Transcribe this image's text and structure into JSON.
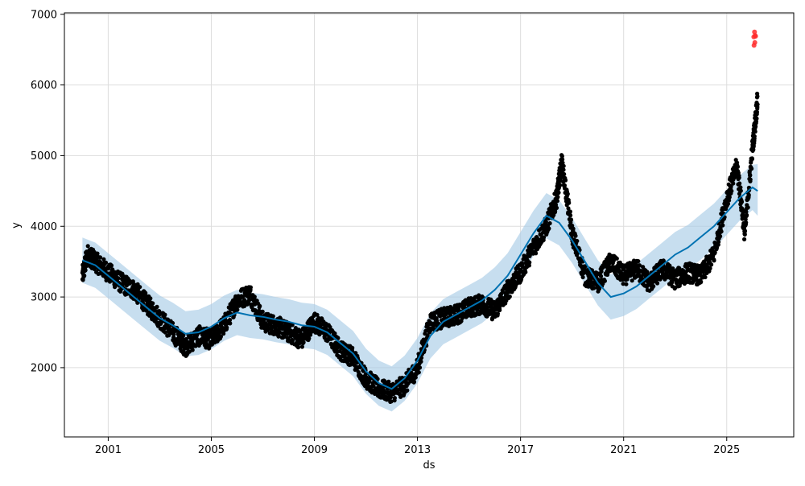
{
  "chart_data": {
    "type": "scatter",
    "title": "",
    "xlabel": "ds",
    "ylabel": "y",
    "xlim": [
      1999.3,
      2027.6
    ],
    "ylim": [
      1020,
      7020
    ],
    "x_ticks": [
      2001,
      2005,
      2009,
      2013,
      2017,
      2021,
      2025
    ],
    "x_tick_labels": [
      "2001",
      "2005",
      "2009",
      "2013",
      "2017",
      "2021",
      "2025"
    ],
    "y_ticks": [
      2000,
      3000,
      4000,
      5000,
      6000,
      7000
    ],
    "y_tick_labels": [
      "2000",
      "3000",
      "4000",
      "5000",
      "6000",
      "7000"
    ],
    "grid": true,
    "legend": "none",
    "colors": {
      "actual": "#000000",
      "forecast_line": "#0072b2",
      "interval": "#a9cde6",
      "outlier": "#ff2a2a",
      "grid": "#dddddd"
    },
    "forecast": {
      "x": [
        2000.0,
        2000.5,
        2001.0,
        2001.5,
        2002.0,
        2002.5,
        2003.0,
        2003.5,
        2004.0,
        2004.5,
        2005.0,
        2005.5,
        2006.0,
        2006.5,
        2007.0,
        2007.5,
        2008.0,
        2008.5,
        2009.0,
        2009.5,
        2010.0,
        2010.5,
        2011.0,
        2011.5,
        2012.0,
        2012.5,
        2013.0,
        2013.5,
        2014.0,
        2014.5,
        2015.0,
        2015.5,
        2016.0,
        2016.5,
        2017.0,
        2017.5,
        2018.0,
        2018.5,
        2019.0,
        2019.5,
        2020.0,
        2020.5,
        2021.0,
        2021.5,
        2022.0,
        2022.5,
        2023.0,
        2023.5,
        2024.0,
        2024.5,
        2025.0,
        2025.5,
        2026.0,
        2026.2
      ],
      "yhat": [
        3520,
        3450,
        3300,
        3150,
        3000,
        2850,
        2700,
        2600,
        2480,
        2500,
        2580,
        2700,
        2780,
        2740,
        2720,
        2680,
        2650,
        2600,
        2580,
        2500,
        2350,
        2200,
        1950,
        1780,
        1700,
        1850,
        2100,
        2450,
        2650,
        2750,
        2850,
        2950,
        3100,
        3300,
        3600,
        3900,
        4150,
        4050,
        3800,
        3500,
        3200,
        3000,
        3050,
        3150,
        3300,
        3450,
        3600,
        3700,
        3850,
        4000,
        4200,
        4400,
        4550,
        4500
      ],
      "lower": [
        3200,
        3130,
        2980,
        2830,
        2680,
        2530,
        2380,
        2280,
        2160,
        2180,
        2260,
        2380,
        2460,
        2420,
        2400,
        2360,
        2330,
        2280,
        2260,
        2180,
        2030,
        1880,
        1630,
        1460,
        1380,
        1530,
        1780,
        2130,
        2330,
        2430,
        2530,
        2630,
        2780,
        2980,
        3280,
        3580,
        3830,
        3730,
        3480,
        3180,
        2880,
        2680,
        2730,
        2830,
        2980,
        3130,
        3280,
        3380,
        3530,
        3680,
        3880,
        4080,
        4230,
        4150
      ],
      "upper": [
        3840,
        3770,
        3620,
        3470,
        3320,
        3170,
        3020,
        2920,
        2800,
        2820,
        2900,
        3020,
        3100,
        3060,
        3040,
        3000,
        2970,
        2920,
        2900,
        2820,
        2670,
        2520,
        2270,
        2100,
        2020,
        2170,
        2420,
        2770,
        2970,
        3070,
        3170,
        3270,
        3420,
        3620,
        3920,
        4220,
        4470,
        4370,
        4120,
        3820,
        3520,
        3320,
        3370,
        3470,
        3620,
        3770,
        3920,
        4020,
        4170,
        4320,
        4520,
        4720,
        4870,
        4880
      ]
    },
    "actual_anchors": {
      "x": [
        2000.0,
        2000.2,
        2000.5,
        2001.0,
        2001.5,
        2002.0,
        2002.5,
        2003.0,
        2003.5,
        2004.0,
        2004.5,
        2005.0,
        2005.5,
        2006.0,
        2006.5,
        2007.0,
        2007.5,
        2008.0,
        2008.5,
        2009.0,
        2009.5,
        2010.0,
        2010.5,
        2011.0,
        2011.5,
        2012.0,
        2012.5,
        2013.0,
        2013.5,
        2014.0,
        2014.5,
        2015.0,
        2015.5,
        2016.0,
        2016.5,
        2017.0,
        2017.5,
        2018.0,
        2018.4,
        2018.6,
        2019.0,
        2019.5,
        2020.0,
        2020.5,
        2021.0,
        2021.5,
        2022.0,
        2022.5,
        2023.0,
        2023.5,
        2024.0,
        2024.5,
        2025.0,
        2025.4,
        2025.7,
        2026.0,
        2026.2
      ],
      "y": [
        3300,
        3600,
        3500,
        3350,
        3200,
        3100,
        2900,
        2700,
        2500,
        2300,
        2450,
        2400,
        2600,
        2950,
        3050,
        2650,
        2600,
        2500,
        2400,
        2650,
        2500,
        2250,
        2150,
        1850,
        1700,
        1650,
        1750,
        2000,
        2650,
        2700,
        2750,
        2850,
        2900,
        2800,
        3100,
        3350,
        3700,
        4000,
        4400,
        4900,
        3900,
        3300,
        3200,
        3500,
        3300,
        3400,
        3200,
        3400,
        3250,
        3350,
        3300,
        3600,
        4400,
        4850,
        3900,
        5100,
        5800
      ]
    },
    "outliers": {
      "x": [
        2026.05,
        2026.08,
        2026.1,
        2026.12,
        2026.06,
        2026.09
      ],
      "y": [
        6680,
        6750,
        6700,
        6690,
        6560,
        6600
      ]
    }
  }
}
